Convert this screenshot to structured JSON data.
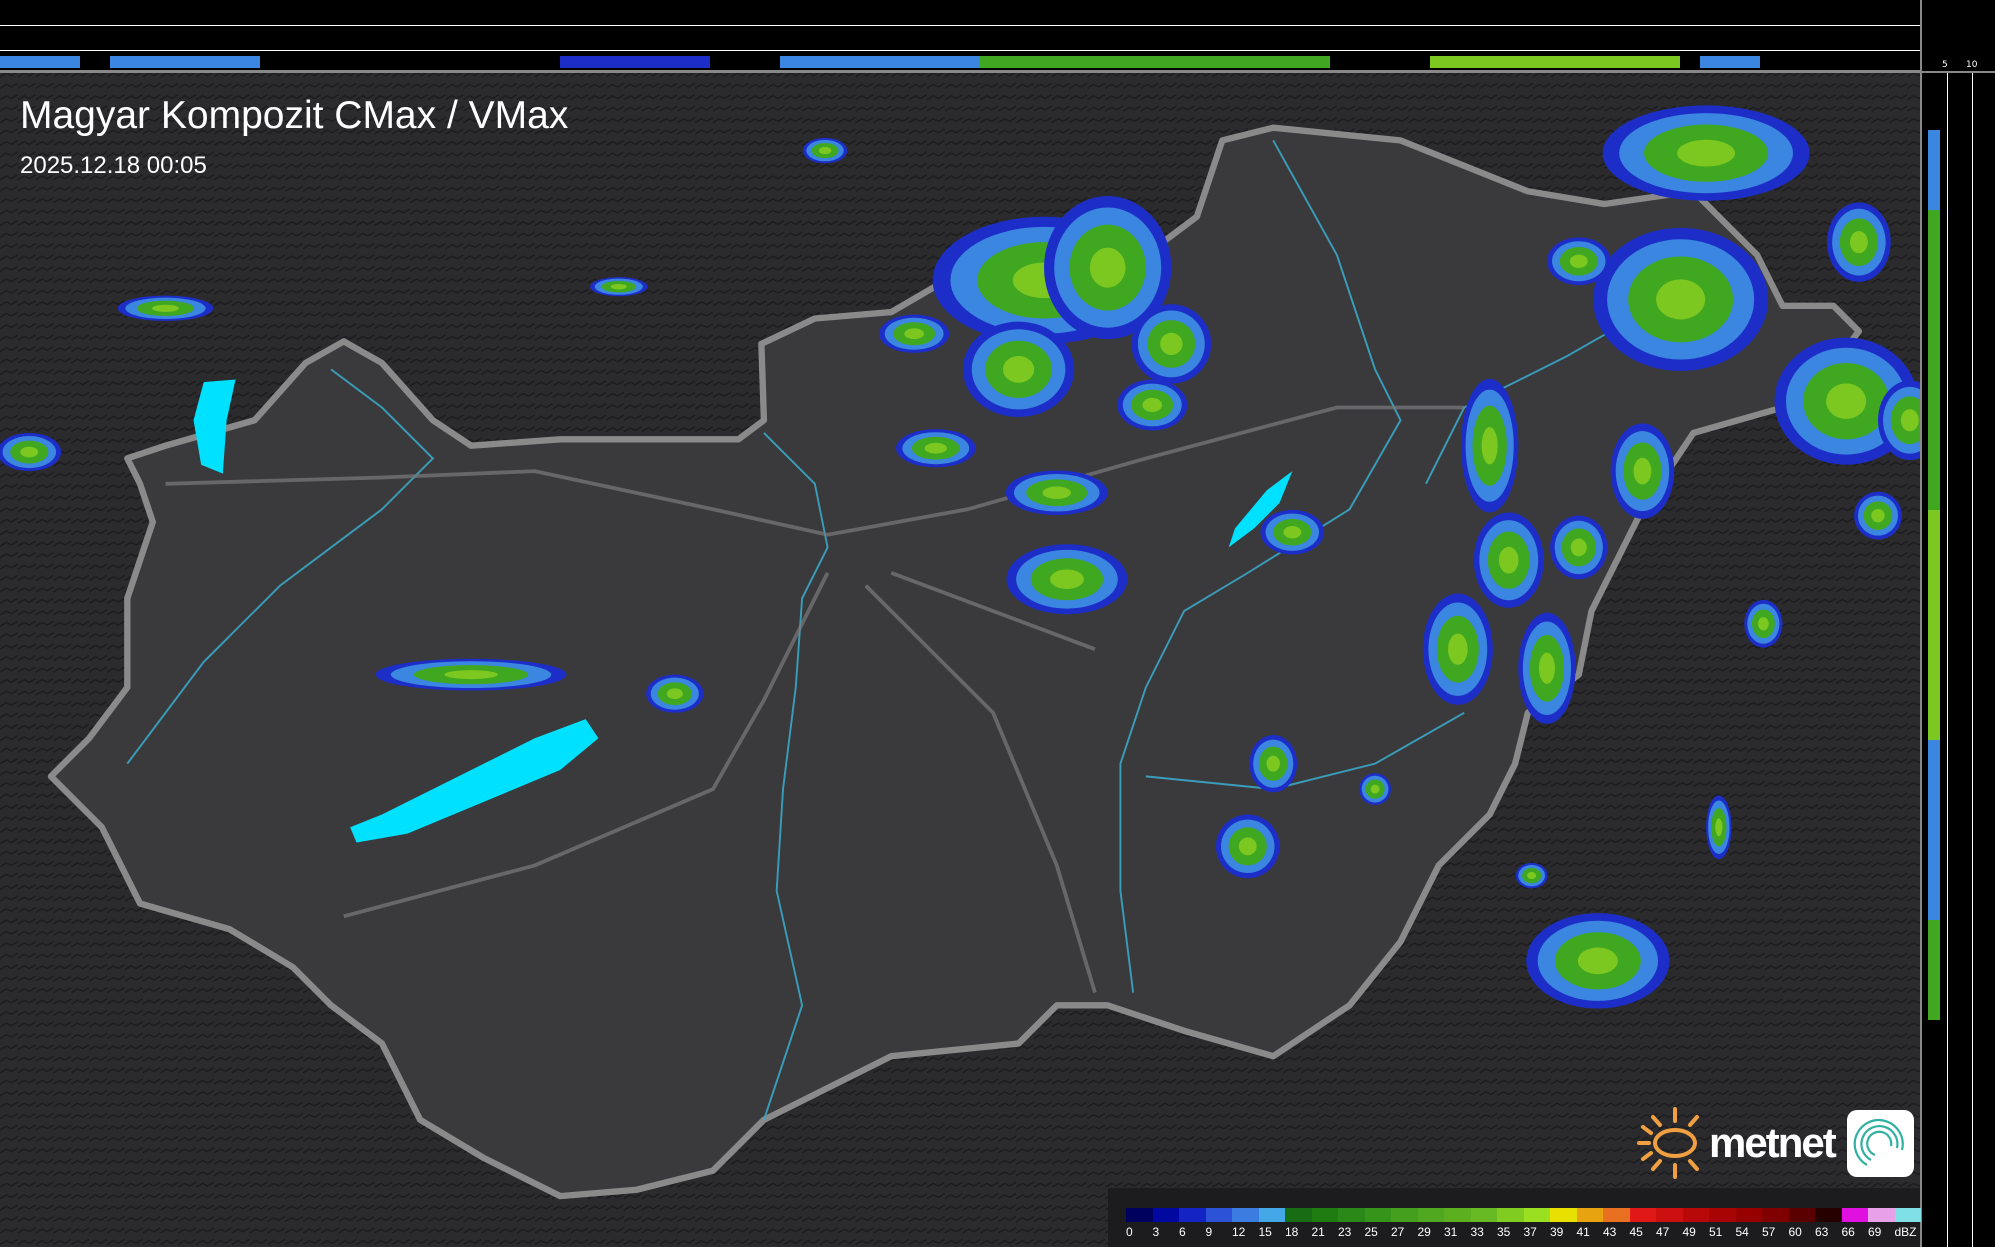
{
  "title": "Magyar Kompozit CMax / VMax",
  "timestamp": "2025.12.18 00:05",
  "side_profile": {
    "top_ticks": [
      "10",
      "5"
    ],
    "right_ticks": [
      "5",
      "10"
    ]
  },
  "legend": {
    "unit": "dBZ",
    "labels": [
      "0",
      "3",
      "6",
      "9",
      "12",
      "15",
      "18",
      "21",
      "23",
      "25",
      "27",
      "29",
      "31",
      "33",
      "35",
      "37",
      "39",
      "41",
      "43",
      "45",
      "47",
      "49",
      "51",
      "54",
      "57",
      "60",
      "63",
      "66",
      "69"
    ],
    "colors": [
      "#00005e",
      "#0008a0",
      "#1424c4",
      "#2c52d8",
      "#3a7ce0",
      "#44a8e8",
      "#186c14",
      "#1e7c10",
      "#2a8818",
      "#36941a",
      "#44a01c",
      "#50a820",
      "#5cb020",
      "#68ba24",
      "#80cc20",
      "#9ae020",
      "#e8e000",
      "#e8a410",
      "#e87020",
      "#e01818",
      "#cc1010",
      "#b80808",
      "#a80404",
      "#980000",
      "#800000",
      "#5a0000",
      "#260000",
      "#e010e0",
      "#e8a0e8",
      "#80e0e8"
    ]
  },
  "branding": {
    "logo_text": "metnet",
    "sun_color": "#f0a040",
    "icon_color": "#30b0a0"
  },
  "colors": {
    "background": "#2b2b2e",
    "country_fill": "#3b3b3e",
    "border": "#8a8a8a",
    "rivers": "#3aa8c8",
    "lakes": "#00e0ff"
  }
}
